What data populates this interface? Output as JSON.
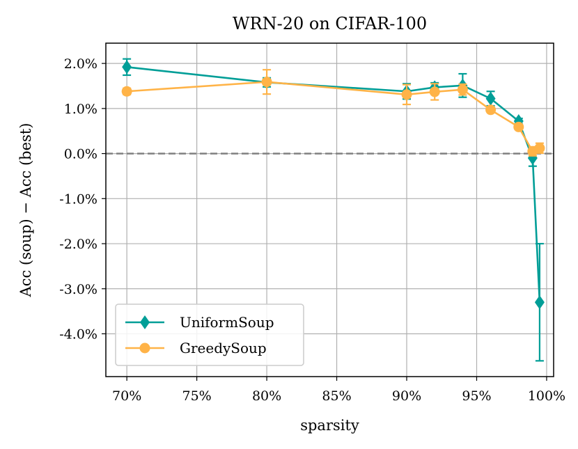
{
  "chart_data": {
    "type": "line",
    "title": "WRN-20 on CIFAR-100",
    "xlabel": "sparsity",
    "ylabel": "Acc (soup) − Acc (best)",
    "xlim": [
      68.5,
      100.5
    ],
    "ylim": [
      -4.95,
      2.45
    ],
    "xticks": [
      70,
      75,
      80,
      85,
      90,
      95,
      100
    ],
    "xtick_labels": [
      "70%",
      "75%",
      "80%",
      "85%",
      "90%",
      "95%",
      "100%"
    ],
    "yticks": [
      2.0,
      1.0,
      0.0,
      -1.0,
      -2.0,
      -3.0,
      -4.0
    ],
    "ytick_labels": [
      "2.0%",
      "1.0%",
      "0.0%",
      "-1.0%",
      "-2.0%",
      "-3.0%",
      "-4.0%"
    ],
    "grid": true,
    "reference_line": {
      "y": 0.0,
      "style": "dashed",
      "color": "#808080"
    },
    "legend": {
      "position": "lower-left"
    },
    "series": [
      {
        "name": "UniformSoup",
        "color": "#009e97",
        "marker": "diamond",
        "x": [
          70,
          80,
          90,
          92,
          94,
          96,
          98,
          99,
          99.5
        ],
        "y": [
          1.92,
          1.58,
          1.38,
          1.47,
          1.51,
          1.22,
          0.72,
          -0.1,
          -3.3
        ],
        "err": [
          0.18,
          0.1,
          0.17,
          0.1,
          0.26,
          0.16,
          0.06,
          0.18,
          1.3
        ]
      },
      {
        "name": "GreedySoup",
        "color": "#ffb347",
        "marker": "circle",
        "x": [
          70,
          80,
          90,
          92,
          94,
          96,
          98,
          99,
          99.5
        ],
        "y": [
          1.38,
          1.59,
          1.31,
          1.37,
          1.42,
          0.97,
          0.59,
          0.05,
          0.12
        ],
        "err": [
          0.07,
          0.27,
          0.22,
          0.18,
          0.12,
          0.05,
          0.05,
          0.1,
          0.11
        ]
      }
    ]
  }
}
